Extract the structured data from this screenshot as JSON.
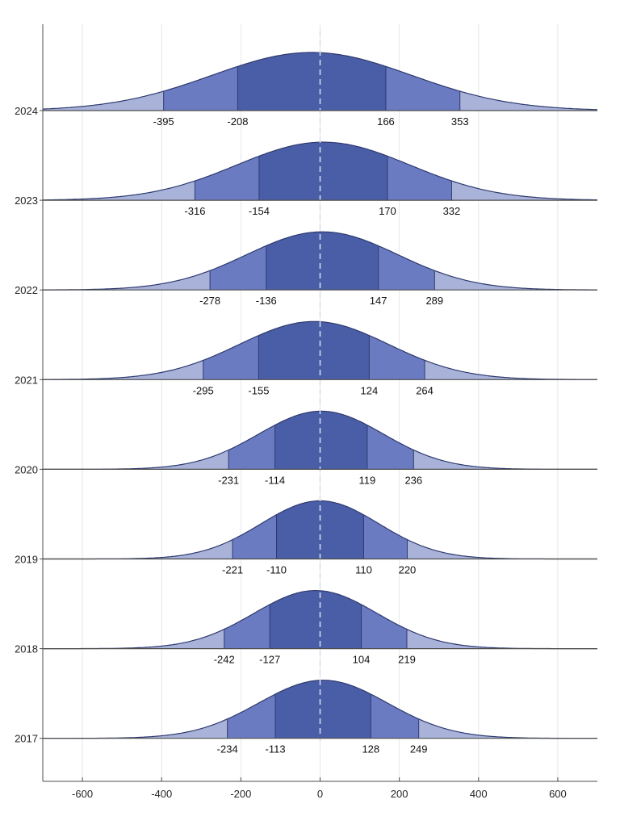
{
  "chart_data": {
    "type": "ridgeline",
    "xlim": [
      -700,
      700
    ],
    "x_ticks": [
      -600,
      -400,
      -200,
      0,
      200,
      400,
      600
    ],
    "x_tick_labels": [
      "-600",
      "-400",
      "-200",
      "0",
      "200",
      "400",
      "600"
    ],
    "grid": "vertical",
    "reference_line_x": 0,
    "colors": {
      "outer_band": "#6a7bc2",
      "inner_band": "#4a5ea8",
      "tail": "#a9b3da",
      "outline": "#2e3a6e",
      "reference_line": "#d8dcec",
      "grid": "#e6e6e6",
      "axis": "#4d4d4d"
    },
    "rows": [
      {
        "year": "2024",
        "labels": [
          "-395",
          "-208",
          "166",
          "353"
        ],
        "quantiles": [
          -395,
          -208,
          166,
          353
        ]
      },
      {
        "year": "2023",
        "labels": [
          "-316",
          "-154",
          "170",
          "332"
        ],
        "quantiles": [
          -316,
          -154,
          170,
          332
        ]
      },
      {
        "year": "2022",
        "labels": [
          "-278",
          "-136",
          "147",
          "289"
        ],
        "quantiles": [
          -278,
          -136,
          147,
          289
        ]
      },
      {
        "year": "2021",
        "labels": [
          "-295",
          "-155",
          "124",
          "264"
        ],
        "quantiles": [
          -295,
          -155,
          124,
          264
        ]
      },
      {
        "year": "2020",
        "labels": [
          "-231",
          "-114",
          "119",
          "236"
        ],
        "quantiles": [
          -231,
          -114,
          119,
          236
        ]
      },
      {
        "year": "2019",
        "labels": [
          "-221",
          "-110",
          "110",
          "220"
        ],
        "quantiles": [
          -221,
          -110,
          110,
          220
        ]
      },
      {
        "year": "2018",
        "labels": [
          "-242",
          "-127",
          "104",
          "219"
        ],
        "quantiles": [
          -242,
          -127,
          104,
          219
        ]
      },
      {
        "year": "2017",
        "labels": [
          "-234",
          "-113",
          "128",
          "249"
        ],
        "quantiles": [
          -234,
          -113,
          128,
          249
        ]
      }
    ]
  }
}
